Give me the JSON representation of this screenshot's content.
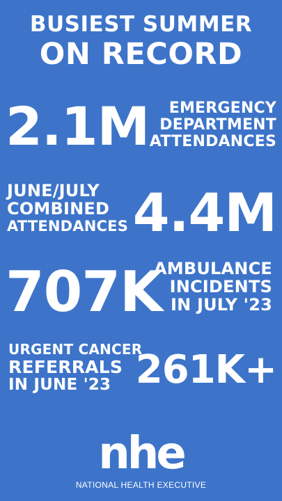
{
  "title": {
    "line1": "BUSIEST SUMMER",
    "line2": "ON RECORD"
  },
  "stats": [
    {
      "value": "2.1M",
      "label": [
        "EMERGENCY",
        "DEPARTMENT",
        "ATTENDANCES"
      ]
    },
    {
      "value": "4.4M",
      "label": [
        "JUNE/JULY",
        "COMBINED",
        "ATTENDANCES"
      ]
    },
    {
      "value": "707K",
      "label": [
        "AMBULANCE",
        "INCIDENTS",
        "IN JULY '23"
      ]
    },
    {
      "value": "261K+",
      "label": [
        "URGENT CANCER",
        "REFERRALS",
        "IN JUNE '23"
      ]
    }
  ],
  "logo": {
    "mark": "nhe",
    "name": "NATIONAL HEALTH EXECUTIVE"
  },
  "colors": {
    "background": "#3d74c9",
    "text": "#ffffff"
  }
}
